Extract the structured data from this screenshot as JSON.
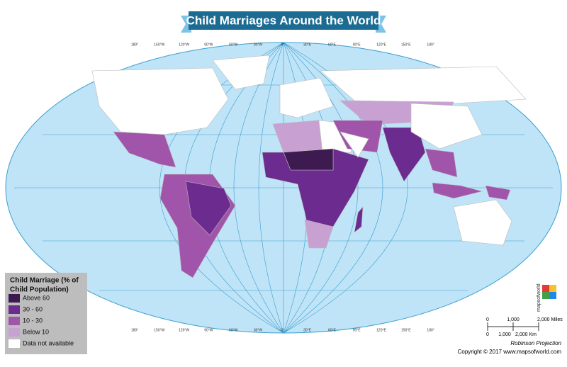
{
  "title": "Child Marriages Around the World",
  "longitudes": [
    "180°",
    "150°W",
    "120°W",
    "90°W",
    "60°W",
    "30°W",
    "0°",
    "30°E",
    "60°E",
    "90°E",
    "120°E",
    "150°E",
    "180°"
  ],
  "legend": {
    "title_lines": [
      "Child Marriage (% of",
      "Child  Population)"
    ],
    "items": [
      {
        "label": "Above 60",
        "color": "#3d1a4f"
      },
      {
        "label": "30 - 60",
        "color": "#6b2b8f"
      },
      {
        "label": "10 - 30",
        "color": "#a155aa"
      },
      {
        "label": "Below 10",
        "color": "#c9a0d2"
      },
      {
        "label": "Data not available",
        "color": "#ffffff"
      }
    ]
  },
  "scale": {
    "miles": [
      "0",
      "1,000",
      "2,000 Miles"
    ],
    "km": [
      "0",
      "1,000",
      "2,000 Km"
    ]
  },
  "projection": "Robinson Projection",
  "logo": "mapsofworld",
  "copyright": "Copyright © 2017 www.mapsofworld.com"
}
